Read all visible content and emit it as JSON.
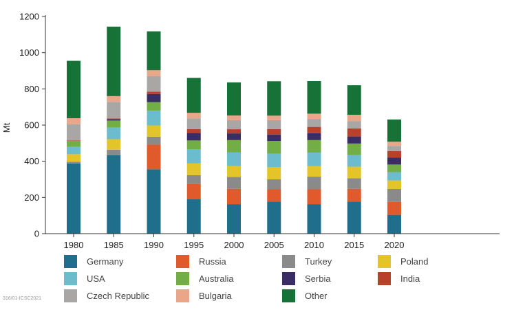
{
  "chart_data": {
    "type": "bar",
    "stacked": true,
    "title": "",
    "xlabel": "",
    "ylabel": "Mt",
    "ylim": [
      0,
      1200
    ],
    "yticks": [
      0,
      200,
      400,
      600,
      800,
      1000,
      1200
    ],
    "categories": [
      "1980",
      "1985",
      "1990",
      "1995",
      "2000",
      "2005",
      "2010",
      "2015",
      "2020"
    ],
    "series": [
      {
        "name": "Germany",
        "color": "#1f6e8c",
        "values": [
          388,
          433,
          356,
          190,
          163,
          177,
          163,
          177,
          104
        ]
      },
      {
        "name": "Russia",
        "color": "#e05a2b",
        "values": [
          0,
          0,
          136,
          86,
          85,
          68,
          82,
          71,
          72
        ]
      },
      {
        "name": "Turkey",
        "color": "#8a8a8a",
        "values": [
          9,
          31,
          44,
          47,
          65,
          55,
          70,
          58,
          71
        ]
      },
      {
        "name": "Poland",
        "color": "#e3c52a",
        "values": [
          42,
          58,
          62,
          65,
          60,
          67,
          59,
          64,
          47
        ]
      },
      {
        "name": "USA",
        "color": "#6bbccc",
        "values": [
          41,
          65,
          82,
          79,
          77,
          75,
          74,
          65,
          46
        ]
      },
      {
        "name": "Australia",
        "color": "#73ad45",
        "values": [
          32,
          38,
          47,
          48,
          67,
          70,
          69,
          63,
          42
        ]
      },
      {
        "name": "Serbia",
        "color": "#3a2d66",
        "values": [
          0,
          7,
          45,
          41,
          37,
          36,
          38,
          39,
          39
        ]
      },
      {
        "name": "India",
        "color": "#b9412c",
        "values": [
          3,
          4,
          13,
          22,
          23,
          30,
          35,
          45,
          35
        ]
      },
      {
        "name": "Czech Republic",
        "color": "#a9a6a6",
        "values": [
          90,
          92,
          86,
          59,
          50,
          49,
          44,
          39,
          29
        ]
      },
      {
        "name": "Bulgaria",
        "color": "#eaa688",
        "values": [
          33,
          32,
          32,
          31,
          26,
          25,
          29,
          36,
          23
        ]
      },
      {
        "name": "Other",
        "color": "#177238",
        "values": [
          317,
          384,
          215,
          193,
          183,
          190,
          180,
          163,
          123
        ]
      }
    ],
    "legend": {
      "placement": "bottom",
      "order": [
        "Germany",
        "Russia",
        "Turkey",
        "Poland",
        "USA",
        "Australia",
        "Serbia",
        "India",
        "Czech Republic",
        "Bulgaria",
        "Other"
      ]
    }
  },
  "footer": {
    "source_code": "316/01-ICSC2021"
  }
}
